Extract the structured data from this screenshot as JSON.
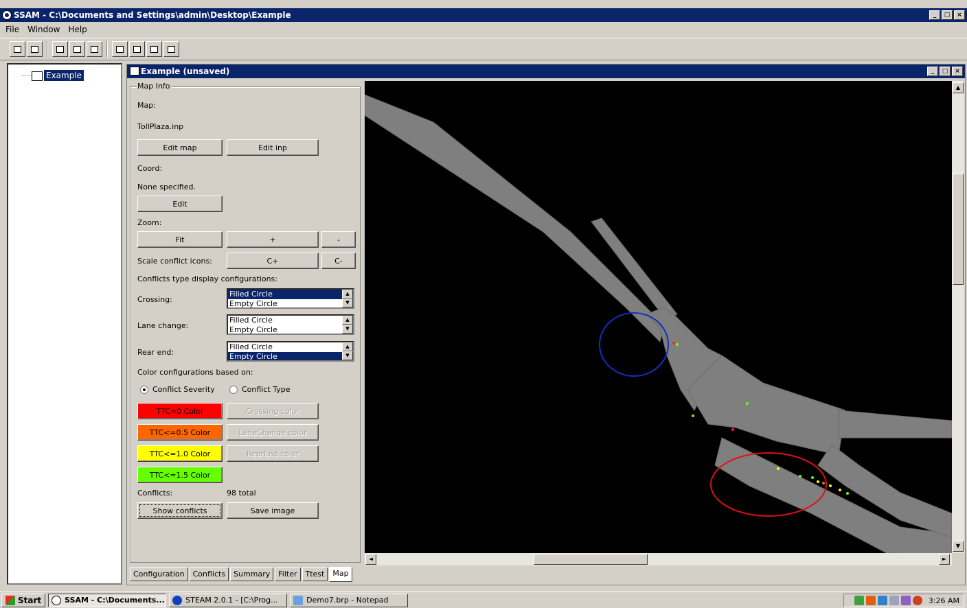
{
  "window": {
    "title": "SSAM - C:\\Documents and Settings\\admin\\Desktop\\Example"
  },
  "menu": {
    "items": [
      "File",
      "Window",
      "Help"
    ]
  },
  "tree": {
    "root_label": "Example"
  },
  "mdi": {
    "title": "Example (unsaved)"
  },
  "map_info": {
    "group_label": "Map Info",
    "map_label": "Map:",
    "map_file": "TollPlaza.inp",
    "edit_map": "Edit map",
    "edit_inp": "Edit inp",
    "coord_label": "Coord:",
    "coord_value": "None specified.",
    "edit": "Edit",
    "zoom_label": "Zoom:",
    "fit": "Fit",
    "zoom_in": "+",
    "zoom_out": "-",
    "scale_label": "Scale conflict icons:",
    "scale_up": "C+",
    "scale_down": "C-",
    "conf_type_label": "Conflicts type display configurations:",
    "crossing_label": "Crossing:",
    "lane_change_label": "Lane change:",
    "rear_end_label": "Rear end:",
    "list_options": [
      "Filled Circle",
      "Empty Circle"
    ],
    "color_config_label": "Color configurations based on:",
    "radio_severity": "Conflict Severity",
    "radio_type": "Conflict Type",
    "ttc0": "TTC=0 Color",
    "ttc05": "TTC<=0.5 Color",
    "ttc10": "TTC<=1.0 Color",
    "ttc15": "TTC<=1.5 Color",
    "crossing_color": "Crossing color",
    "lanechange_color": "LaneChange color",
    "rearend_color": "RearEnd color",
    "conflicts_label": "Conflicts:",
    "conflicts_total": "98 total",
    "show_conflicts": "Show conflicts",
    "save_image": "Save image"
  },
  "colors": {
    "ttc0": "#ff0000",
    "ttc05": "#ff6600",
    "ttc10": "#ffff00",
    "ttc15": "#66ff00"
  },
  "tabs": [
    "Configuration",
    "Conflicts",
    "Summary",
    "Filter",
    "Ttest",
    "Map"
  ],
  "taskbar": {
    "start": "Start",
    "task1": "SSAM - C:\\Documents...",
    "task2": "STEAM 2.0.1 - [C:\\Prog...",
    "task3": "Demo7.brp - Notepad",
    "clock": "3:26 AM"
  }
}
